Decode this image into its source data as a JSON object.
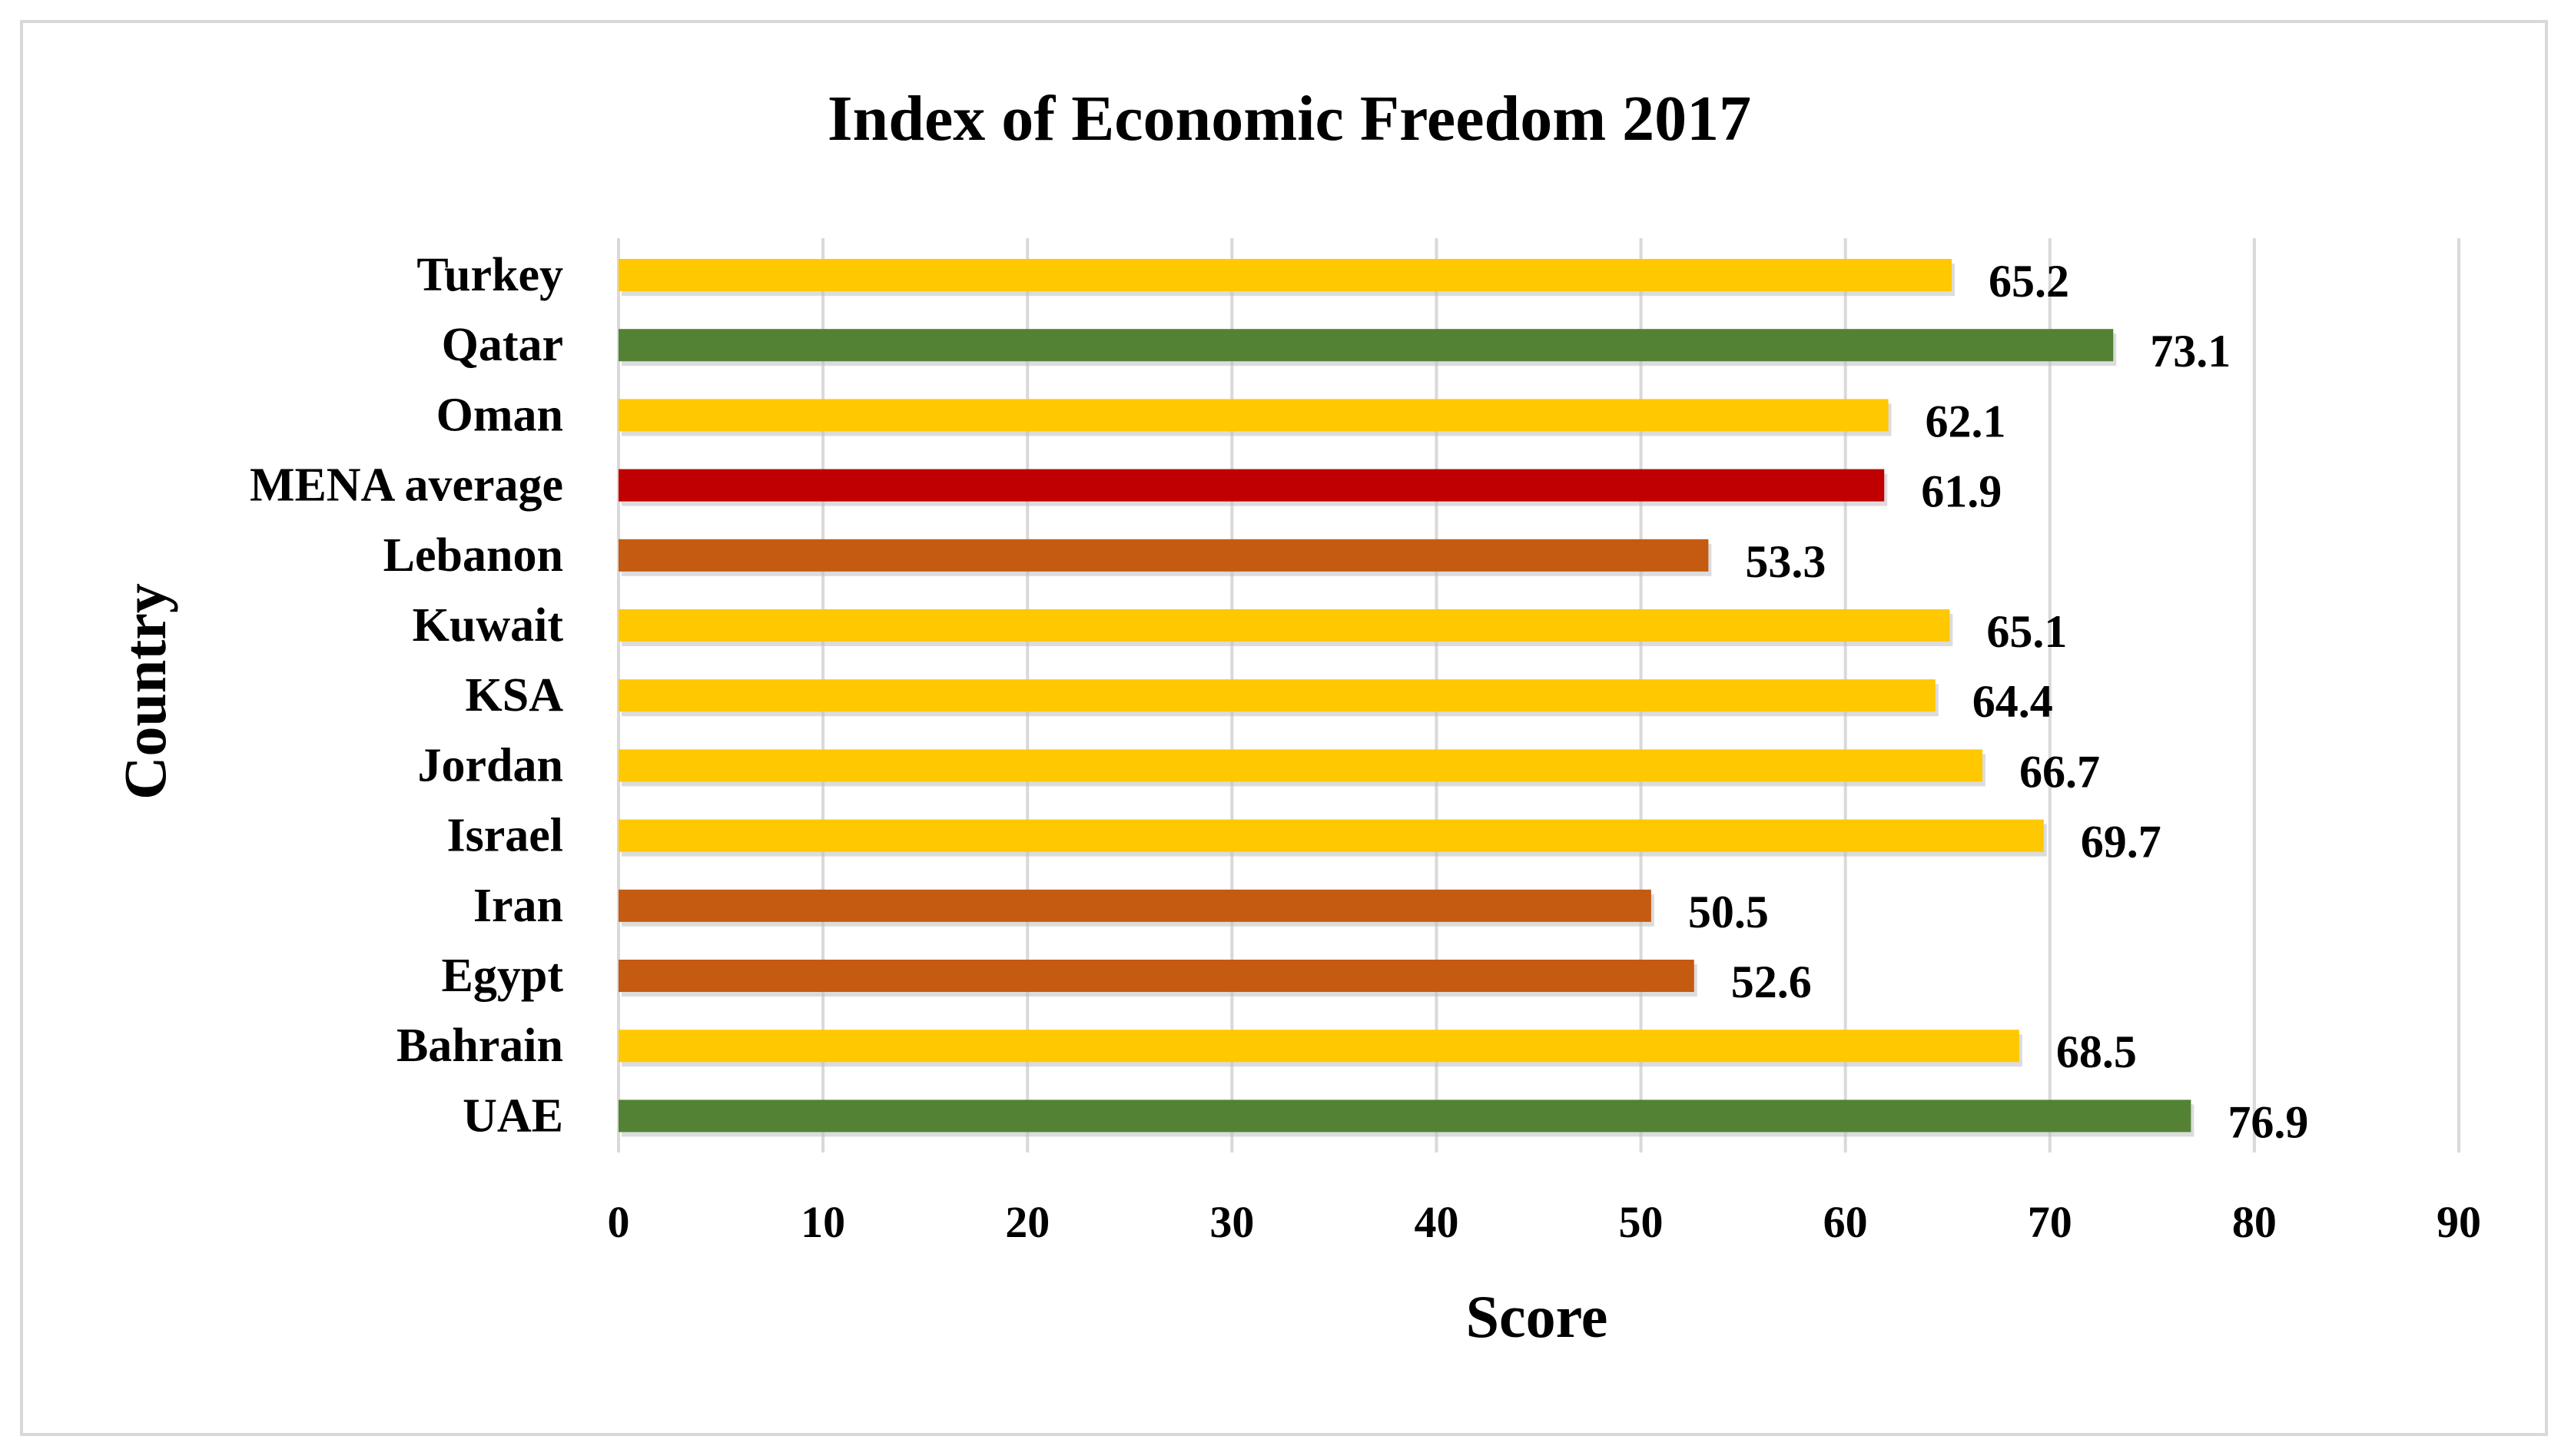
{
  "chart_data": {
    "type": "bar",
    "orientation": "horizontal",
    "title": "Index of Economic Freedom 2017",
    "xlabel": "Score",
    "ylabel": "Country",
    "xlim": [
      0,
      90
    ],
    "xticks": [
      "0",
      "10",
      "20",
      "30",
      "40",
      "50",
      "60",
      "70",
      "80",
      "90"
    ],
    "grid": "vertical",
    "legend": "none",
    "categories": [
      "Turkey",
      "Qatar",
      "Oman",
      "MENA average",
      "Lebanon",
      "Kuwait",
      "KSA",
      "Jordan",
      "Israel",
      "Iran",
      "Egypt",
      "Bahrain",
      "UAE"
    ],
    "values": [
      65.2,
      73.1,
      62.1,
      61.9,
      53.3,
      65.1,
      64.4,
      66.7,
      69.7,
      50.5,
      52.6,
      68.5,
      76.9
    ],
    "value_labels": [
      "65.2",
      "73.1",
      "62.1",
      "61.9",
      "53.3",
      "65.1",
      "64.4",
      "66.7",
      "69.7",
      "50.5",
      "52.6",
      "68.5",
      "76.9"
    ],
    "bar_colors": [
      "#ffc800",
      "#548235",
      "#ffc800",
      "#c00000",
      "#c55a11",
      "#ffc800",
      "#ffc800",
      "#ffc800",
      "#ffc800",
      "#c55a11",
      "#c55a11",
      "#ffc800",
      "#548235"
    ],
    "gridline_color": "#d9d9d9"
  }
}
